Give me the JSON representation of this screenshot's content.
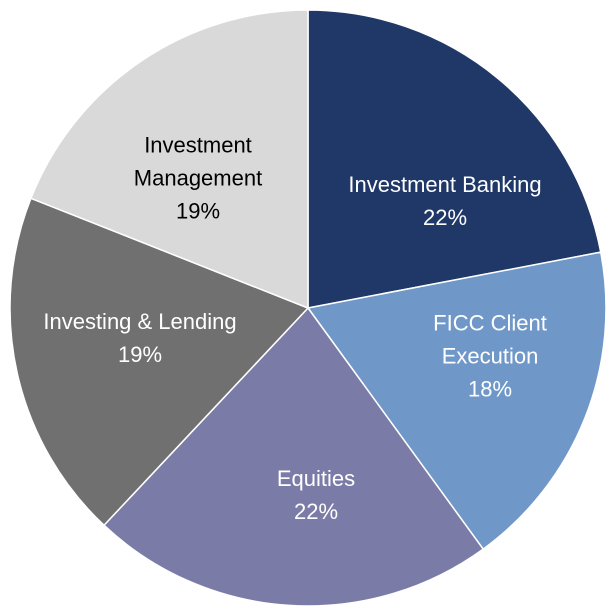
{
  "chart_data": {
    "type": "pie",
    "categories": [
      "Investment Banking",
      "FICC Client Execution",
      "Equities",
      "Investing & Lending",
      "Investment Management"
    ],
    "values": [
      22,
      18,
      22,
      19,
      19
    ],
    "value_labels": [
      "22%",
      "18%",
      "22%",
      "19%",
      "19%"
    ],
    "colors": [
      "#1f3868",
      "#6f98c8",
      "#7b7ba8",
      "#707070",
      "#d9d9d9"
    ]
  }
}
